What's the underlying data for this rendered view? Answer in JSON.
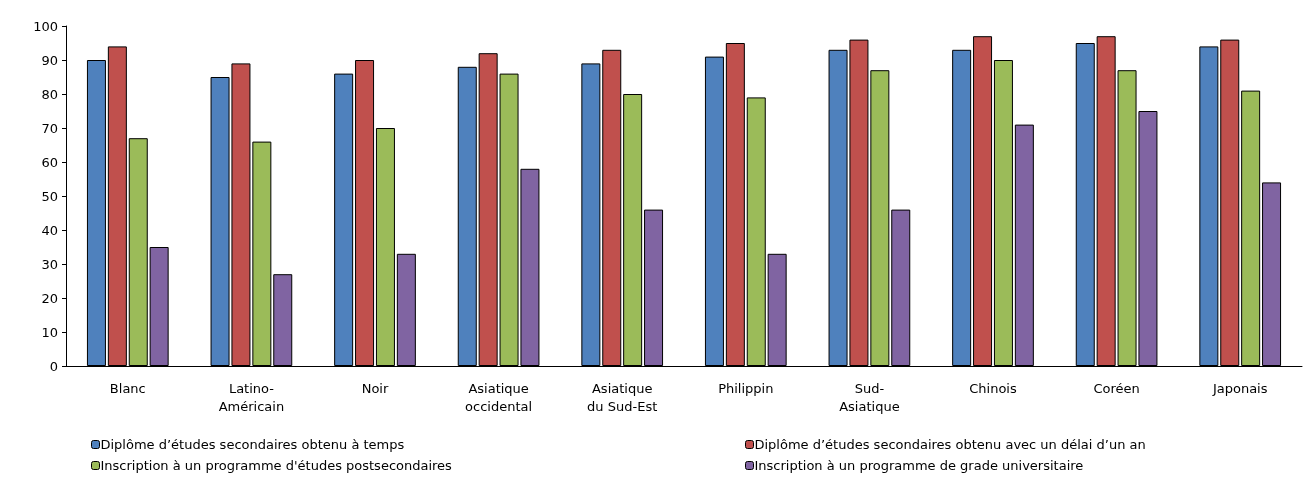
{
  "chart_data": {
    "type": "bar",
    "categories": [
      "Blanc",
      "Latino-Américain",
      "Noir",
      "Asiatique occidental",
      "Asiatique du Sud-Est",
      "Philippin",
      "Sud-Asiatique",
      "Chinois",
      "Coréen",
      "Japonais"
    ],
    "series": [
      {
        "name": "Diplôme d’études secondaires obtenu à temps",
        "color": "#4f81bd",
        "values": [
          90,
          85,
          86,
          88,
          89,
          91,
          93,
          93,
          95,
          94
        ]
      },
      {
        "name": "Diplôme d’études secondaires obtenu avec un délai d’un an",
        "color": "#c0504d",
        "values": [
          94,
          89,
          90,
          92,
          93,
          95,
          96,
          97,
          97,
          96
        ]
      },
      {
        "name": "Inscription à un programme d'études postsecondaires",
        "color": "#9bbb59",
        "values": [
          67,
          66,
          70,
          86,
          80,
          79,
          87,
          90,
          87,
          81
        ]
      },
      {
        "name": "Inscription à un programme de grade universitaire",
        "color": "#8064a2",
        "values": [
          35,
          27,
          33,
          58,
          46,
          33,
          46,
          71,
          75,
          54
        ]
      }
    ],
    "ylim": [
      0,
      100
    ],
    "yticks": [
      0,
      10,
      20,
      30,
      40,
      50,
      60,
      70,
      80,
      90,
      100
    ],
    "grid": false,
    "legend": "bottom"
  }
}
